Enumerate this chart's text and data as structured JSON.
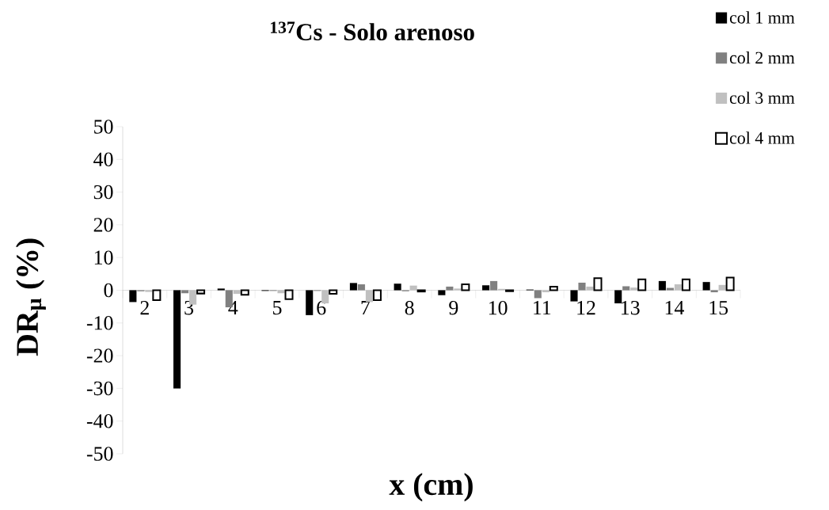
{
  "chart_data": {
    "type": "bar",
    "title": "$^{137}$Cs - Solo arenoso",
    "xlabel": "x (cm)",
    "ylabel": "DR$_{μ}$ (%)",
    "categories": [
      "2",
      "3",
      "4",
      "5",
      "6",
      "7",
      "8",
      "9",
      "10",
      "11",
      "12",
      "13",
      "14",
      "15"
    ],
    "series": [
      {
        "name": "col 1 mm",
        "color": "#000000",
        "values": [
          -3.6,
          -30,
          0.5,
          -0.2,
          -7.6,
          2.2,
          2.0,
          -1.5,
          1.5,
          0.2,
          -3.4,
          -4.0,
          2.8,
          2.5
        ]
      },
      {
        "name": "col 2 mm",
        "color": "#808080",
        "values": [
          -0.3,
          -0.9,
          -5.2,
          -0.2,
          -0.2,
          1.8,
          -0.3,
          1.1,
          2.8,
          -2.4,
          2.3,
          1.2,
          0.7,
          -0.6
        ]
      },
      {
        "name": "col 3 mm",
        "color": "#c0c0c0",
        "values": [
          -0.5,
          -4.4,
          -1.1,
          -0.9,
          -4.0,
          -3.6,
          1.4,
          0.5,
          0.4,
          -0.6,
          1.1,
          0.8,
          1.8,
          1.6
        ]
      },
      {
        "name": "col 4 mm",
        "color": "#ffffff",
        "values": [
          -3.0,
          -1.0,
          -1.4,
          -2.7,
          -1.1,
          -3.0,
          -0.4,
          1.8,
          -0.3,
          1.1,
          3.7,
          3.3,
          3.3,
          3.9
        ]
      }
    ],
    "ylim": [
      -50,
      50
    ],
    "yticks": [
      -50,
      -40,
      -30,
      -20,
      -10,
      0,
      10,
      20,
      30,
      40,
      50
    ],
    "legend": "top right"
  }
}
